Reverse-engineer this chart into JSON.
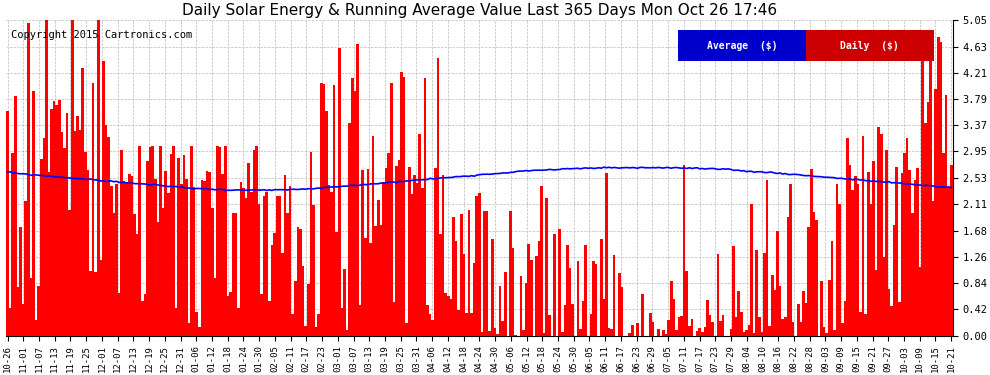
{
  "title": "Daily Solar Energy & Running Average Value Last 365 Days Mon Oct 26 17:46",
  "copyright": "Copyright 2015 Cartronics.com",
  "ylabel_right_ticks": [
    0.0,
    0.42,
    0.84,
    1.26,
    1.68,
    2.11,
    2.53,
    2.95,
    3.37,
    3.79,
    4.21,
    4.63,
    5.05
  ],
  "ylim": [
    0,
    5.05
  ],
  "bar_color": "#FF0000",
  "avg_color": "#0000FF",
  "background_color": "#FFFFFF",
  "grid_color": "#BBBBBB",
  "legend_avg_bg": "#0000CC",
  "legend_daily_bg": "#CC0000",
  "legend_avg_text": "Average  ($)",
  "legend_daily_text": "Daily  ($)",
  "title_fontsize": 11,
  "copyright_fontsize": 7.5,
  "n_days": 365,
  "x_tick_labels": [
    "10-26",
    "11-01",
    "11-07",
    "11-13",
    "11-19",
    "11-25",
    "12-01",
    "12-07",
    "12-13",
    "12-19",
    "12-25",
    "12-31",
    "01-06",
    "01-12",
    "01-18",
    "01-24",
    "01-30",
    "02-05",
    "02-11",
    "02-17",
    "02-23",
    "03-01",
    "03-07",
    "03-13",
    "03-19",
    "03-25",
    "03-31",
    "04-06",
    "04-12",
    "04-18",
    "04-24",
    "04-30",
    "05-06",
    "05-12",
    "05-18",
    "05-24",
    "05-30",
    "06-05",
    "06-11",
    "06-17",
    "06-23",
    "06-29",
    "07-05",
    "07-11",
    "07-17",
    "07-23",
    "07-29",
    "08-04",
    "08-10",
    "08-16",
    "08-22",
    "08-28",
    "09-03",
    "09-09",
    "09-15",
    "09-21",
    "09-27",
    "10-03",
    "10-09",
    "10-15",
    "10-21"
  ],
  "avg_values": [
    2.62,
    2.6,
    2.59,
    2.58,
    2.57,
    2.56,
    2.55,
    2.54,
    2.53,
    2.52,
    2.51,
    2.5,
    2.49,
    2.48,
    2.47,
    2.46,
    2.45,
    2.44,
    2.43,
    2.42,
    2.41,
    2.4,
    2.39,
    2.38,
    2.37,
    2.36,
    2.35,
    2.35,
    2.34,
    2.34,
    2.33,
    2.33,
    2.33,
    2.33,
    2.33,
    2.33,
    2.33,
    2.33,
    2.34,
    2.34,
    2.35,
    2.35,
    2.36,
    2.37,
    2.38,
    2.39,
    2.4,
    2.41,
    2.42,
    2.43,
    2.44,
    2.45,
    2.46,
    2.47,
    2.48,
    2.49,
    2.5,
    2.51,
    2.52,
    2.53,
    2.54,
    2.55,
    2.56,
    2.57,
    2.58,
    2.59,
    2.6,
    2.61,
    2.62,
    2.63,
    2.64,
    2.65,
    2.65,
    2.66,
    2.66,
    2.67,
    2.67,
    2.68,
    2.68,
    2.68,
    2.69,
    2.69,
    2.69,
    2.69,
    2.69,
    2.69,
    2.69,
    2.69,
    2.69,
    2.69,
    2.69,
    2.68,
    2.68,
    2.68,
    2.67,
    2.67,
    2.66,
    2.66,
    2.65,
    2.64,
    2.63,
    2.62,
    2.62,
    2.61,
    2.6,
    2.59,
    2.58,
    2.57,
    2.56,
    2.55,
    2.54,
    2.53,
    2.52,
    2.51,
    2.5,
    2.49,
    2.48,
    2.47,
    2.46,
    2.45,
    2.44,
    2.43,
    2.42,
    2.41,
    2.4,
    2.39,
    2.38,
    2.37
  ]
}
